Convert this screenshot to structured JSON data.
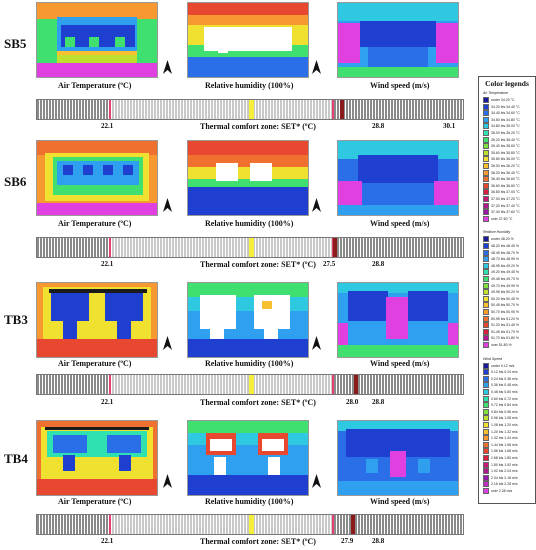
{
  "rows": [
    {
      "label": "SB5",
      "low": "22.1",
      "high": "28.8",
      "set_value": "30.1",
      "caption_air": "Air Temperature (ºC)",
      "caption_rh": "Relative humidity (100%)",
      "caption_wind": "Wind speed (m/s)",
      "caption_zone": "Thermal comfort zone: SET* (ºC)"
    },
    {
      "label": "SB6",
      "low": "22.1",
      "high": "28.8",
      "set_value": "27.5",
      "caption_air": "Air Temperature (ºC)",
      "caption_rh": "Relative humidity (100%)",
      "caption_wind": "Wind speed (m/s)",
      "caption_zone": "Thermal comfort zone: SET* (ºC)"
    },
    {
      "label": "TB3",
      "low": "22.1",
      "high": "28.8",
      "set_value": "28.0",
      "caption_air": "Air Temperature (ºC)",
      "caption_rh": "Relative humidity (100%)",
      "caption_wind": "Wind speed (m/s)",
      "caption_zone": "Thermal comfort zone: SET* (ºC)"
    },
    {
      "label": "TB4",
      "low": "22.1",
      "high": "28.8",
      "set_value": "27.9",
      "caption_air": "Air Temperature (ºC)",
      "caption_rh": "Relative humidity (100%)",
      "caption_wind": "Wind speed (m/s)",
      "caption_zone": "Thermal comfort zone: SET* (ºC)"
    }
  ],
  "legend": {
    "title": "Color legends",
    "sections": [
      {
        "title": "Air Temperature",
        "items": [
          {
            "color": "#1a1a9a",
            "text": "under 34.20 °C"
          },
          {
            "color": "#1f3fd0",
            "text": "34.20 bis 34.40 °C"
          },
          {
            "color": "#2a6fe8",
            "text": "34.40 bis 34.60 °C"
          },
          {
            "color": "#2fa0f0",
            "text": "34.60 bis 34.80 °C"
          },
          {
            "color": "#2ec8e0",
            "text": "34.80 bis 35.00 °C"
          },
          {
            "color": "#2fe0b0",
            "text": "35.00 bis 35.20 °C"
          },
          {
            "color": "#40e070",
            "text": "35.20 bis 35.40 °C"
          },
          {
            "color": "#80e040",
            "text": "35.40 bis 35.60 °C"
          },
          {
            "color": "#c0e030",
            "text": "35.60 bis 35.80 °C"
          },
          {
            "color": "#f0e030",
            "text": "35.80 bis 36.00 °C"
          },
          {
            "color": "#f8c030",
            "text": "36.00 bis 36.20 °C"
          },
          {
            "color": "#f89830",
            "text": "36.20 bis 36.40 °C"
          },
          {
            "color": "#f07030",
            "text": "36.40 bis 36.60 °C"
          },
          {
            "color": "#e84830",
            "text": "36.60 bis 36.80 °C"
          },
          {
            "color": "#d82040",
            "text": "36.80 bis 37.00 °C"
          },
          {
            "color": "#c81878",
            "text": "37.00 bis 37.20 °C"
          },
          {
            "color": "#b01890",
            "text": "37.20 bis 37.40 °C"
          },
          {
            "color": "#9818a8",
            "text": "37.40 bis 37.60 °C"
          },
          {
            "color": "#e040e0",
            "text": "over 37.60 °C"
          }
        ]
      },
      {
        "title": "Relative Humidity",
        "items": [
          {
            "color": "#1a1a9a",
            "text": "under 48.20 %"
          },
          {
            "color": "#1f3fd0",
            "text": "48.20 bis 48.45 %"
          },
          {
            "color": "#2a6fe8",
            "text": "48.45 bis 48.70 %"
          },
          {
            "color": "#2fa0f0",
            "text": "48.70 bis 48.95 %"
          },
          {
            "color": "#2ec8e0",
            "text": "48.95 bis 49.20 %"
          },
          {
            "color": "#2fe0b0",
            "text": "49.20 bis 49.45 %"
          },
          {
            "color": "#40e070",
            "text": "49.45 bis 49.70 %"
          },
          {
            "color": "#80e040",
            "text": "49.70 bis 49.95 %"
          },
          {
            "color": "#c0e030",
            "text": "49.95 bis 50.20 %"
          },
          {
            "color": "#f0e030",
            "text": "50.20 bis 50.45 %"
          },
          {
            "color": "#f8c030",
            "text": "50.45 bis 50.70 %"
          },
          {
            "color": "#f89830",
            "text": "50.70 bis 50.95 %"
          },
          {
            "color": "#f07030",
            "text": "50.95 bis 51.20 %"
          },
          {
            "color": "#e84830",
            "text": "51.20 bis 51.45 %"
          },
          {
            "color": "#d82040",
            "text": "51.45 bis 51.70 %"
          },
          {
            "color": "#b01890",
            "text": "51.70 bis 51.80 %"
          },
          {
            "color": "#e040e0",
            "text": "over 51.80 %"
          }
        ]
      },
      {
        "title": "Wind Speed",
        "items": [
          {
            "color": "#1a1a9a",
            "text": "under 0.12 m/s"
          },
          {
            "color": "#1f3fd0",
            "text": "0.12 bis 0.24 m/s"
          },
          {
            "color": "#2a6fe8",
            "text": "0.24 bis 0.36 m/s"
          },
          {
            "color": "#2fa0f0",
            "text": "0.36 bis 0.48 m/s"
          },
          {
            "color": "#2ec8e0",
            "text": "0.48 bis 0.60 m/s"
          },
          {
            "color": "#2fe0b0",
            "text": "0.60 bis 0.72 m/s"
          },
          {
            "color": "#40e070",
            "text": "0.72 bis 0.84 m/s"
          },
          {
            "color": "#80e040",
            "text": "0.84 bis 0.96 m/s"
          },
          {
            "color": "#c0e030",
            "text": "0.96 bis 1.08 m/s"
          },
          {
            "color": "#f0e030",
            "text": "1.08 bis 1.20 m/s"
          },
          {
            "color": "#f8c030",
            "text": "1.20 bis 1.32 m/s"
          },
          {
            "color": "#f89830",
            "text": "1.32 bis 1.44 m/s"
          },
          {
            "color": "#f07030",
            "text": "1.44 bis 1.56 m/s"
          },
          {
            "color": "#e84830",
            "text": "1.56 bis 1.68 m/s"
          },
          {
            "color": "#d82040",
            "text": "1.68 bis 1.80 m/s"
          },
          {
            "color": "#c81878",
            "text": "1.80 bis 1.92 m/s"
          },
          {
            "color": "#b01890",
            "text": "1.92 bis 2.04 m/s"
          },
          {
            "color": "#9818a8",
            "text": "2.04 bis 2.16 m/s"
          },
          {
            "color": "#c030c0",
            "text": "2.16 bis 2.28 m/s"
          },
          {
            "color": "#e040e0",
            "text": "over 2.28 m/s"
          }
        ]
      }
    ]
  },
  "colors": {
    "set_marker": "#8b1a1a",
    "comfort_marker": "#f5ee3a",
    "edge_marker": "#e44070",
    "bar_stripe_dark": "#8a8a8a",
    "bar_stripe_light": "#c8c8c8"
  },
  "icons": {
    "north": "north-arrow-icon"
  }
}
